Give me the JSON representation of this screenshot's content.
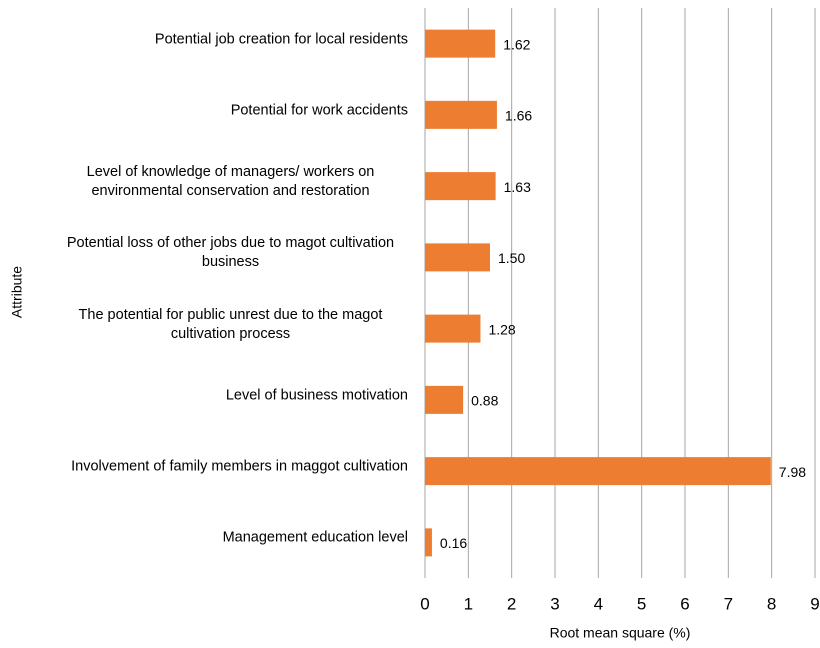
{
  "chart_data": {
    "type": "bar",
    "orientation": "horizontal",
    "x_label": "Root mean square (%)",
    "y_label": "Attribute",
    "categories": [
      "Potential job creation for local residents",
      "Potential for work accidents",
      "Level of knowledge of managers/ workers on environmental conservation and restoration",
      "Potential loss of other jobs due to magot cultivation business",
      "The potential for public unrest due to the magot cultivation process",
      "Level of business motivation",
      "Involvement of family members in maggot cultivation",
      "Management education level"
    ],
    "values": [
      1.62,
      1.66,
      1.63,
      1.5,
      1.28,
      0.88,
      7.98,
      0.16
    ],
    "value_labels": [
      "1.62",
      "1.66",
      "1.63",
      "1.50",
      "1.28",
      "0.88",
      "7.98",
      "0.16"
    ],
    "color": "#ed7d31",
    "xlim": [
      0,
      9
    ],
    "xticks": [
      0,
      1,
      2,
      3,
      4,
      5,
      6,
      7,
      8,
      9
    ],
    "grid": true
  }
}
